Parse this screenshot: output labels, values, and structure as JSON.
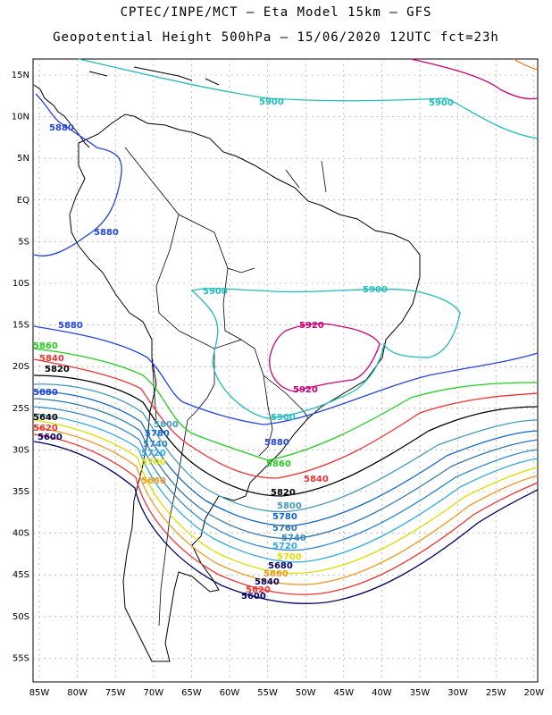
{
  "title_line1": "CPTEC/INPE/MCT –  Eta Model 15km – GFS",
  "title_line2": "Geopotential Height 500hPa – 15/06/2020 12UTC fct=23h",
  "y_ticks": [
    "15N",
    "10N",
    "5N",
    "EQ",
    "5S",
    "10S",
    "15S",
    "20S",
    "25S",
    "30S",
    "35S",
    "40S",
    "45S",
    "50S",
    "55S"
  ],
  "x_ticks": [
    "85W",
    "80W",
    "75W",
    "70W",
    "65W",
    "60W",
    "55W",
    "50W",
    "45W",
    "40W",
    "35W",
    "30W",
    "25W",
    "20W"
  ],
  "contours": [
    {
      "value": "5920",
      "color": "#cc0077"
    },
    {
      "value": "5900",
      "color": "#22bbbb"
    },
    {
      "value": "5880",
      "color": "#2244dd"
    },
    {
      "value": "5860",
      "color": "#22cc22"
    },
    {
      "value": "5840",
      "color": "#ee3333"
    },
    {
      "value": "5820",
      "color": "#000000"
    },
    {
      "value": "5800",
      "color": "#4499bb"
    },
    {
      "value": "5780",
      "color": "#1166cc"
    },
    {
      "value": "5760",
      "color": "#3377aa"
    },
    {
      "value": "5740",
      "color": "#3388cc"
    },
    {
      "value": "5720",
      "color": "#33aadd"
    },
    {
      "value": "5700",
      "color": "#dddd00"
    },
    {
      "value": "5680",
      "color": "#ee9922"
    },
    {
      "value": "5660",
      "color": "#ee3333"
    },
    {
      "value": "5640",
      "color": "#000066"
    }
  ],
  "labels": {
    "l5900a": "5900",
    "l5900b": "5900",
    "l5900c": "5900",
    "l5900d": "5900",
    "l5900e": "5900",
    "l5920a": "5920",
    "l5920b": "5920",
    "l5880a": "5880",
    "l5880b": "5880",
    "l5880c": "5880",
    "l5880d": "5880",
    "l5880e": "5880",
    "l5860a": "5860",
    "l5860b": "5860",
    "l5840a": "5840",
    "l5840b": "5840",
    "l5840c": "5840",
    "l5820a": "5820",
    "l5820b": "5820",
    "l5620": "5620",
    "l5600a": "5600",
    "l5600b": "5600",
    "l5800": "5800",
    "l5780": "5780",
    "l5760": "5760",
    "l5740": "5740",
    "l5720": "5720",
    "l5700": "5700",
    "l5680": "5680",
    "l5660": "5660",
    "l5680b": "5680",
    "l5660b": "5660",
    "l5640": "5640",
    "l5620b": "5620"
  }
}
